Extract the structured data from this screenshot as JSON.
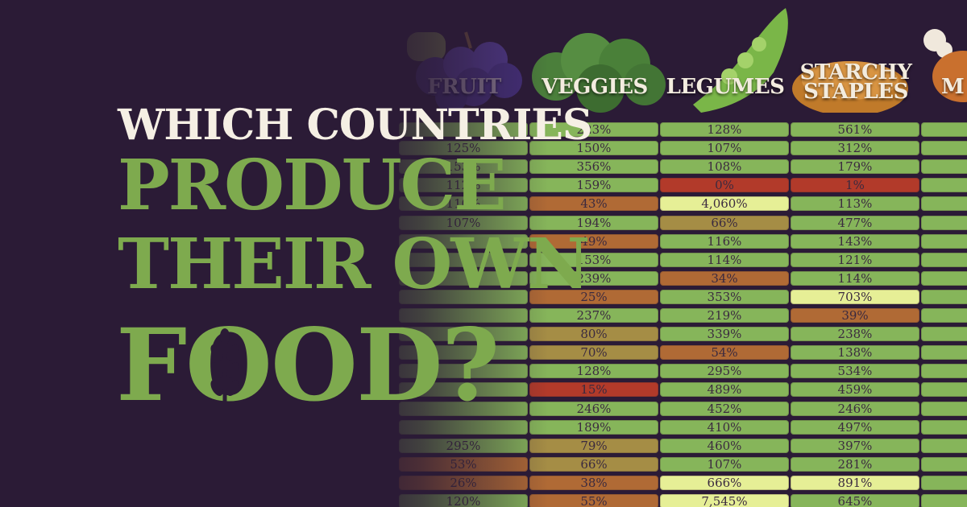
{
  "title": {
    "line1": "WHICH COUNTRIES",
    "line2": "PRODUCE",
    "line3": "THEIR OWN",
    "line4": "FOOD?"
  },
  "chart_data": {
    "type": "table",
    "columns": [
      "FRUIT",
      "VEGGIES",
      "LEGUMES",
      "STARCHY STAPLES",
      "M"
    ],
    "rows": [
      [
        "",
        "223%",
        "128%",
        "561%",
        ""
      ],
      [
        "125%",
        "150%",
        "107%",
        "312%",
        ""
      ],
      [
        "153%",
        "356%",
        "108%",
        "179%",
        ""
      ],
      [
        "112%",
        "159%",
        "0%",
        "1%",
        ""
      ],
      [
        "110%",
        "43%",
        "4,060%",
        "113%",
        ""
      ],
      [
        "107%",
        "194%",
        "66%",
        "477%",
        ""
      ],
      [
        "",
        "49%",
        "116%",
        "143%",
        ""
      ],
      [
        "",
        "153%",
        "114%",
        "121%",
        ""
      ],
      [
        "",
        "239%",
        "34%",
        "114%",
        ""
      ],
      [
        "",
        "25%",
        "353%",
        "703%",
        ""
      ],
      [
        "",
        "237%",
        "219%",
        "39%",
        ""
      ],
      [
        "",
        "80%",
        "339%",
        "238%",
        ""
      ],
      [
        "",
        "70%",
        "54%",
        "138%",
        ""
      ],
      [
        "",
        "128%",
        "295%",
        "534%",
        ""
      ],
      [
        "",
        "15%",
        "489%",
        "459%",
        ""
      ],
      [
        "",
        "246%",
        "452%",
        "246%",
        ""
      ],
      [
        "",
        "189%",
        "410%",
        "497%",
        ""
      ],
      [
        "295%",
        "79%",
        "460%",
        "397%",
        ""
      ],
      [
        "53%",
        "66%",
        "107%",
        "281%",
        ""
      ],
      [
        "26%",
        "38%",
        "666%",
        "891%",
        ""
      ],
      [
        "120%",
        "55%",
        "7,545%",
        "645%",
        ""
      ]
    ]
  },
  "colors": {
    "background": "#2b1b36",
    "title_white": "#f5efe4",
    "title_green": "#7eaa4e",
    "cell_red": "#b23a2a",
    "cell_orange": "#b06a35",
    "cell_green": "#86b55a",
    "cell_light": "#e6ef96"
  },
  "icons": [
    "grapes-icon",
    "broccoli-icon",
    "pea-pod-icon",
    "bread-icon",
    "drumstick-icon",
    "wheat-icon"
  ]
}
